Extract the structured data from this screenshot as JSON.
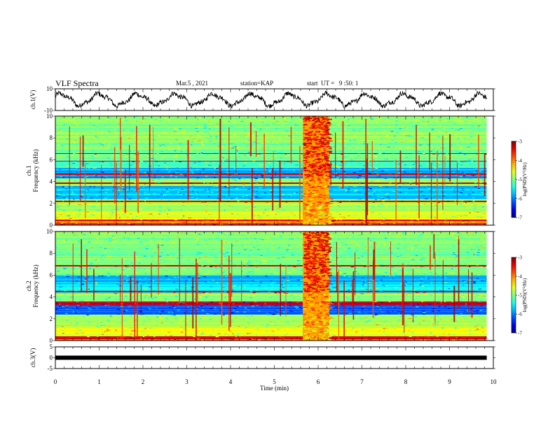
{
  "header": {
    "title": "VLF Spectra",
    "date": "Mar.5 , 2021",
    "station": "station=KAP",
    "start": "start  UT =   9 :50: 1"
  },
  "chart_data": [
    {
      "type": "line",
      "name": "ch1-voltage",
      "ylabel": "ch.1(V)",
      "ylim": [
        -10,
        10
      ],
      "yticks": [
        "10",
        "-10"
      ],
      "xlim": [
        0,
        10
      ],
      "data_end_min": 9.85
    },
    {
      "type": "heatmap",
      "name": "ch1-spectrogram",
      "ylabel_line1": "ch.1",
      "ylabel_line2": "Frequency  (kHz)",
      "ylim": [
        0,
        10
      ],
      "yticks": [
        "0",
        "2",
        "4",
        "6",
        "8",
        "10"
      ],
      "xlim": [
        0,
        10
      ],
      "data_end_min": 9.85,
      "burst_interval_min": [
        5.65,
        6.25
      ],
      "colorbar": {
        "label": "log(PSD)(V²/Hz)",
        "range": [
          -7,
          -3
        ],
        "ticks": [
          "-3",
          "-4",
          "-5",
          "-6",
          "-7"
        ]
      }
    },
    {
      "type": "heatmap",
      "name": "ch2-spectrogram",
      "ylabel_line1": "ch.2",
      "ylabel_line2": "Frequency  (kHz)",
      "ylim": [
        0,
        10
      ],
      "yticks": [
        "0",
        "2",
        "4",
        "6",
        "8",
        "10"
      ],
      "xlim": [
        0,
        10
      ],
      "data_end_min": 9.85,
      "burst_interval_min": [
        5.65,
        6.25
      ],
      "colorbar": {
        "label": "log(PSD)(V²/Hz)",
        "range": [
          -7,
          -3
        ],
        "ticks": [
          "-3",
          "-4",
          "-5",
          "-6",
          "-7"
        ]
      }
    },
    {
      "type": "line",
      "name": "ch3-voltage",
      "ylabel": "ch.3(V)",
      "ylim": [
        -5,
        5
      ],
      "yticks": [
        "5",
        "0",
        "-5"
      ],
      "xlim": [
        0,
        10
      ],
      "data_end_min": 9.85
    }
  ],
  "xaxis": {
    "label": "Time  (min)",
    "ticks": [
      "0",
      "1",
      "2",
      "3",
      "4",
      "5",
      "6",
      "7",
      "8",
      "9",
      "10"
    ]
  }
}
